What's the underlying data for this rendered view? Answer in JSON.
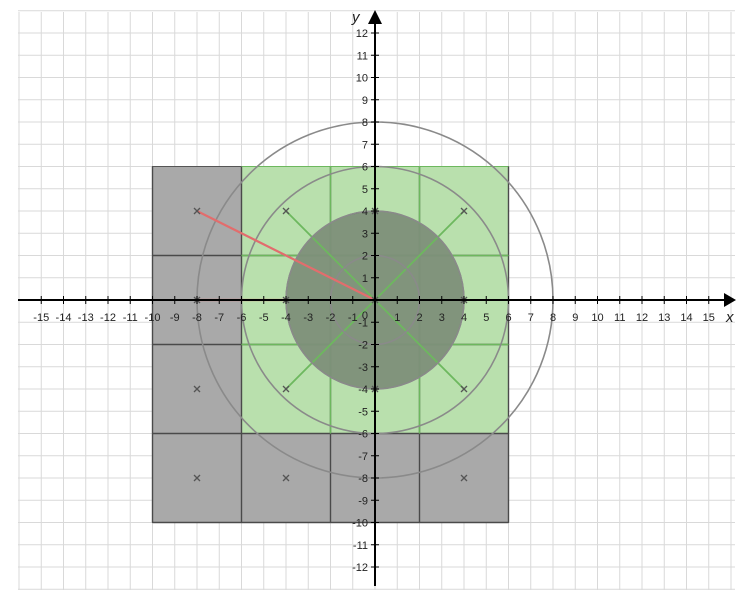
{
  "axes": {
    "x_title": "x",
    "y_title": "y",
    "x_ticks": [
      -15,
      -14,
      -13,
      -12,
      -11,
      -10,
      -9,
      -8,
      -7,
      -6,
      -5,
      -4,
      -3,
      -2,
      -1,
      1,
      2,
      3,
      4,
      5,
      6,
      7,
      8,
      9,
      10,
      11,
      12,
      13,
      14,
      15
    ],
    "y_ticks": [
      12,
      11,
      10,
      9,
      8,
      7,
      6,
      5,
      4,
      3,
      2,
      1,
      -1,
      -2,
      -3,
      -4,
      -5,
      -6,
      -7,
      -8,
      -9,
      -10,
      -11,
      -12
    ],
    "origin_label": "0"
  },
  "colors": {
    "grid": "#d9d9d9",
    "axis": "#000000",
    "gray_region": "#a9a9a9",
    "green_region": "#b9e0ad",
    "green_line": "#6db85e",
    "dark_disk": "#7d8f79",
    "circle_stroke": "#8a8a8a",
    "segment_red": "#e26d6d"
  },
  "shapes": {
    "gray_rectangle": {
      "x_min": -10,
      "x_max": 6,
      "y_min": -10,
      "y_max": 6
    },
    "green_rectangle": {
      "x_min": -6,
      "x_max": 6,
      "y_min": -6,
      "y_max": 6
    },
    "dark_grid_lines_x": [
      -10,
      -6,
      -2,
      2,
      6
    ],
    "dark_grid_lines_y": [
      2,
      -2,
      -6,
      -10
    ],
    "green_grid_lines_x": [
      -2,
      2
    ],
    "green_grid_lines_y": [
      2,
      -2
    ],
    "filled_disk": {
      "cx": 0,
      "cy": 0,
      "r": 4
    },
    "circles": [
      {
        "cx": 0,
        "cy": 0,
        "r": 2
      },
      {
        "cx": 0,
        "cy": 0,
        "r": 4
      },
      {
        "cx": 0,
        "cy": 0,
        "r": 6
      },
      {
        "cx": 0,
        "cy": 0,
        "r": 8
      }
    ],
    "diagonals": [
      {
        "x1": -4,
        "y1": 4,
        "x2": 4,
        "y2": -4
      },
      {
        "x1": -4,
        "y1": -4,
        "x2": 4,
        "y2": 4
      }
    ],
    "red_segments": [
      {
        "x1": -8,
        "y1": 4,
        "x2": 0,
        "y2": 0
      },
      {
        "x1": -8,
        "y1": 0,
        "x2": -4,
        "y2": 0
      }
    ],
    "points": [
      {
        "x": -8,
        "y": 4
      },
      {
        "x": -4,
        "y": 4
      },
      {
        "x": 0,
        "y": 4
      },
      {
        "x": 4,
        "y": 4
      },
      {
        "x": -8,
        "y": 0
      },
      {
        "x": -4,
        "y": 0
      },
      {
        "x": 0,
        "y": 0
      },
      {
        "x": 4,
        "y": 0
      },
      {
        "x": -8,
        "y": -4
      },
      {
        "x": -4,
        "y": -4
      },
      {
        "x": 0,
        "y": -4
      },
      {
        "x": 4,
        "y": -4
      },
      {
        "x": -8,
        "y": -8
      },
      {
        "x": -4,
        "y": -8
      },
      {
        "x": 4,
        "y": -8
      }
    ]
  }
}
